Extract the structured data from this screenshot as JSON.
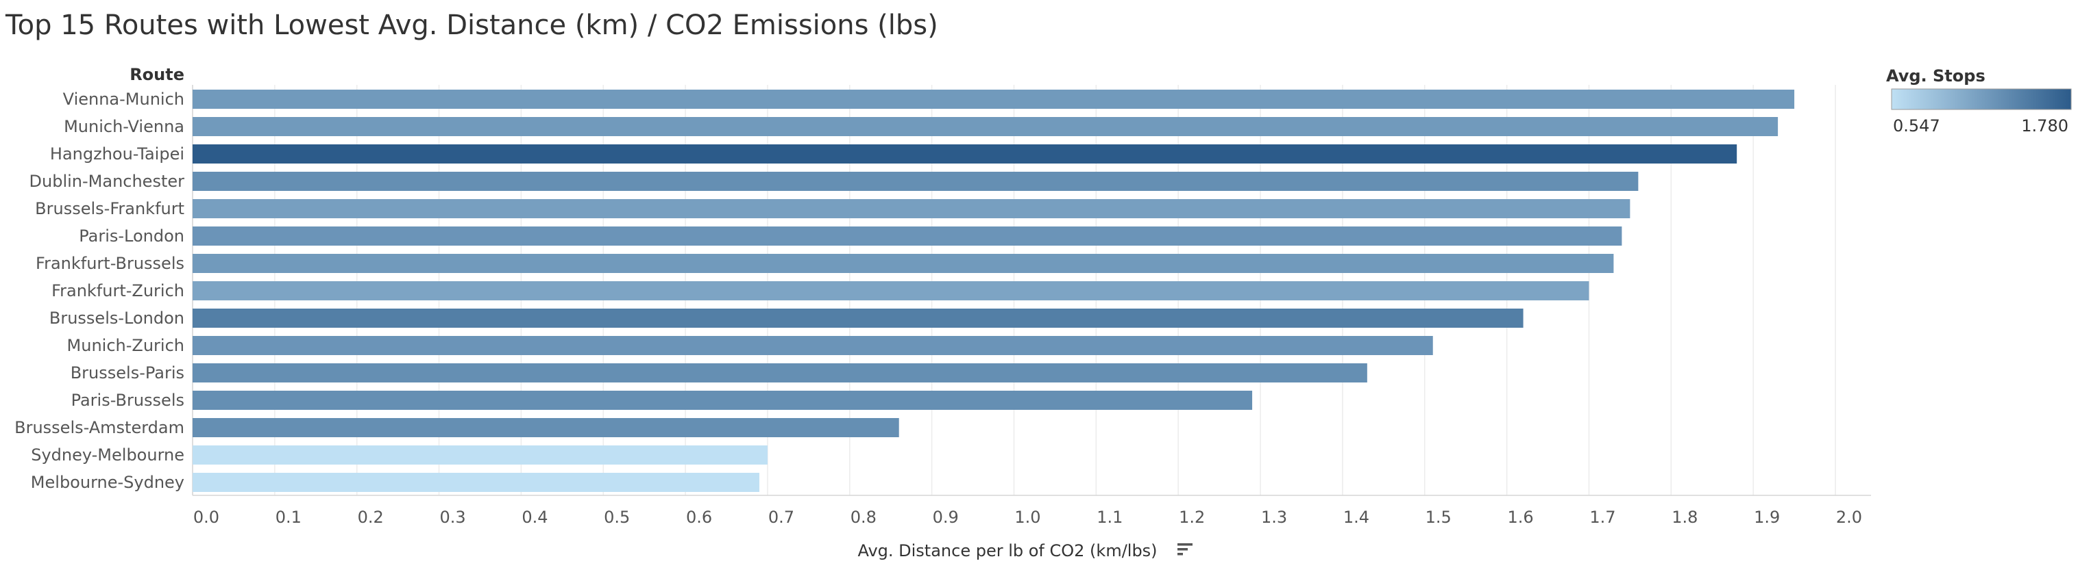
{
  "title": "Top 15 Routes with Lowest Avg. Distance (km) / CO2 Emissions (lbs)",
  "legend": {
    "title": "Avg. Stops",
    "min_label": "0.547",
    "max_label": "1.780",
    "min": 0.547,
    "max": 1.78,
    "color_min": "#bfe0f4",
    "color_max": "#2c5b8a"
  },
  "chart_data": {
    "type": "bar",
    "orientation": "horizontal",
    "title": "Top 15 Routes with Lowest Avg. Distance (km) / CO2 Emissions (lbs)",
    "category_header": "Route",
    "xlabel": "Avg. Distance per lb of CO2 (km/lbs)",
    "xlim": [
      0.0,
      2.05
    ],
    "xticks": [
      "0.0",
      "0.1",
      "0.2",
      "0.3",
      "0.4",
      "0.5",
      "0.6",
      "0.7",
      "0.8",
      "0.9",
      "1.0",
      "1.1",
      "1.2",
      "1.3",
      "1.4",
      "1.5",
      "1.6",
      "1.7",
      "1.8",
      "1.9",
      "2.0"
    ],
    "grid": true,
    "legend_position": "top-right",
    "categories": [
      "Vienna-Munich",
      "Munich-Vienna",
      "Hangzhou-Taipei",
      "Dublin-Manchester",
      "Brussels-Frankfurt",
      "Paris-London",
      "Frankfurt-Brussels",
      "Frankfurt-Zurich",
      "Brussels-London",
      "Munich-Zurich",
      "Brussels-Paris",
      "Paris-Brussels",
      "Brussels-Amsterdam",
      "Sydney-Melbourne",
      "Melbourne-Sydney"
    ],
    "values": [
      1.95,
      1.93,
      1.88,
      1.76,
      1.75,
      1.74,
      1.73,
      1.7,
      1.62,
      1.51,
      1.43,
      1.29,
      0.86,
      0.7,
      0.69
    ],
    "color_values": [
      1.2,
      1.2,
      1.78,
      1.3,
      1.15,
      1.25,
      1.2,
      1.1,
      1.45,
      1.25,
      1.3,
      1.3,
      1.3,
      0.547,
      0.547
    ]
  }
}
